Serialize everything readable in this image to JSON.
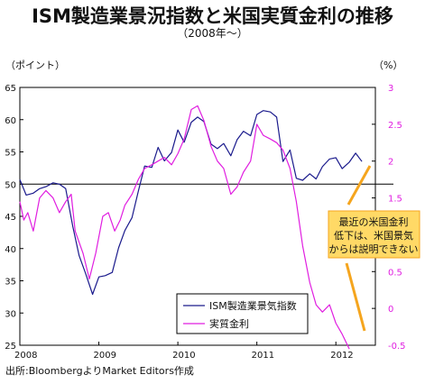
{
  "title": "ISM製造業景況指数と米国実質金利の推移",
  "subtitle": "（2008年～）",
  "source": "出所:BloombergよりMarket Editors作成",
  "chart_data": {
    "type": "line",
    "left_axis_label": "（ポイント）",
    "right_axis_label": "（%）",
    "left_axis": {
      "min": 25,
      "max": 65,
      "ticks": [
        "65",
        "60",
        "55",
        "50",
        "45",
        "40",
        "35",
        "30",
        "25"
      ]
    },
    "right_axis": {
      "min": -0.5,
      "max": 3,
      "ticks": [
        "3",
        "2.5",
        "2",
        "1.5",
        "1",
        "0.5",
        "0",
        "-0.5"
      ]
    },
    "x_axis": {
      "min": 2008,
      "max": 2012.5,
      "ticks": [
        "2008",
        "2009",
        "2010",
        "2011",
        "2012"
      ]
    },
    "reference_line_left": 50,
    "series": [
      {
        "name": "ISM製造業景気指数",
        "axis": "left",
        "color": "#1a1a8c",
        "points": [
          [
            2008.0,
            50.7
          ],
          [
            2008.08,
            48.3
          ],
          [
            2008.17,
            48.6
          ],
          [
            2008.25,
            49.3
          ],
          [
            2008.33,
            49.6
          ],
          [
            2008.42,
            50.2
          ],
          [
            2008.5,
            50.0
          ],
          [
            2008.58,
            49.3
          ],
          [
            2008.67,
            43.4
          ],
          [
            2008.75,
            38.9
          ],
          [
            2008.83,
            36.2
          ],
          [
            2008.92,
            32.9
          ],
          [
            2009.0,
            35.6
          ],
          [
            2009.08,
            35.8
          ],
          [
            2009.17,
            36.3
          ],
          [
            2009.25,
            40.1
          ],
          [
            2009.33,
            42.8
          ],
          [
            2009.42,
            44.8
          ],
          [
            2009.5,
            48.9
          ],
          [
            2009.58,
            52.8
          ],
          [
            2009.67,
            52.6
          ],
          [
            2009.75,
            55.7
          ],
          [
            2009.83,
            53.6
          ],
          [
            2009.92,
            54.9
          ],
          [
            2010.0,
            58.4
          ],
          [
            2010.08,
            56.5
          ],
          [
            2010.17,
            59.6
          ],
          [
            2010.25,
            60.4
          ],
          [
            2010.33,
            59.7
          ],
          [
            2010.42,
            56.2
          ],
          [
            2010.5,
            55.5
          ],
          [
            2010.58,
            56.3
          ],
          [
            2010.67,
            54.4
          ],
          [
            2010.75,
            56.9
          ],
          [
            2010.83,
            58.2
          ],
          [
            2010.92,
            57.5
          ],
          [
            2011.0,
            60.8
          ],
          [
            2011.08,
            61.4
          ],
          [
            2011.17,
            61.2
          ],
          [
            2011.25,
            60.4
          ],
          [
            2011.33,
            53.5
          ],
          [
            2011.42,
            55.3
          ],
          [
            2011.5,
            50.9
          ],
          [
            2011.58,
            50.6
          ],
          [
            2011.67,
            51.6
          ],
          [
            2011.75,
            50.8
          ],
          [
            2011.83,
            52.7
          ],
          [
            2011.92,
            53.9
          ],
          [
            2012.0,
            54.1
          ],
          [
            2012.08,
            52.4
          ],
          [
            2012.17,
            53.4
          ],
          [
            2012.25,
            54.8
          ],
          [
            2012.33,
            53.5
          ]
        ]
      },
      {
        "name": "実質金利",
        "axis": "right",
        "color": "#e01ee0",
        "points": [
          [
            2008.0,
            1.45
          ],
          [
            2008.05,
            1.2
          ],
          [
            2008.1,
            1.3
          ],
          [
            2008.17,
            1.05
          ],
          [
            2008.25,
            1.5
          ],
          [
            2008.33,
            1.6
          ],
          [
            2008.42,
            1.5
          ],
          [
            2008.5,
            1.3
          ],
          [
            2008.58,
            1.45
          ],
          [
            2008.65,
            1.55
          ],
          [
            2008.7,
            1.05
          ],
          [
            2008.8,
            0.75
          ],
          [
            2008.88,
            0.4
          ],
          [
            2008.96,
            0.75
          ],
          [
            2009.05,
            1.25
          ],
          [
            2009.12,
            1.3
          ],
          [
            2009.2,
            1.05
          ],
          [
            2009.27,
            1.2
          ],
          [
            2009.33,
            1.4
          ],
          [
            2009.42,
            1.55
          ],
          [
            2009.5,
            1.75
          ],
          [
            2009.58,
            1.9
          ],
          [
            2009.67,
            1.95
          ],
          [
            2009.75,
            2.0
          ],
          [
            2009.83,
            2.05
          ],
          [
            2009.92,
            1.95
          ],
          [
            2010.0,
            2.1
          ],
          [
            2010.08,
            2.3
          ],
          [
            2010.17,
            2.7
          ],
          [
            2010.25,
            2.75
          ],
          [
            2010.33,
            2.55
          ],
          [
            2010.42,
            2.2
          ],
          [
            2010.5,
            2.0
          ],
          [
            2010.58,
            1.9
          ],
          [
            2010.67,
            1.55
          ],
          [
            2010.75,
            1.65
          ],
          [
            2010.83,
            1.85
          ],
          [
            2010.92,
            2.0
          ],
          [
            2011.0,
            2.5
          ],
          [
            2011.08,
            2.35
          ],
          [
            2011.17,
            2.3
          ],
          [
            2011.25,
            2.25
          ],
          [
            2011.33,
            2.15
          ],
          [
            2011.42,
            1.9
          ],
          [
            2011.5,
            1.45
          ],
          [
            2011.58,
            0.85
          ],
          [
            2011.67,
            0.35
          ],
          [
            2011.75,
            0.05
          ],
          [
            2011.83,
            -0.05
          ],
          [
            2011.92,
            0.05
          ],
          [
            2012.0,
            -0.2
          ],
          [
            2012.08,
            -0.35
          ],
          [
            2012.17,
            -0.55
          ]
        ]
      }
    ],
    "legend": {
      "placement": "bottom-right"
    },
    "annotation": {
      "lines": [
        "最近の米国金利",
        "低下は、米国景気",
        "からは説明できない"
      ],
      "color": "#f5a51e",
      "background": "#ffd966"
    }
  }
}
